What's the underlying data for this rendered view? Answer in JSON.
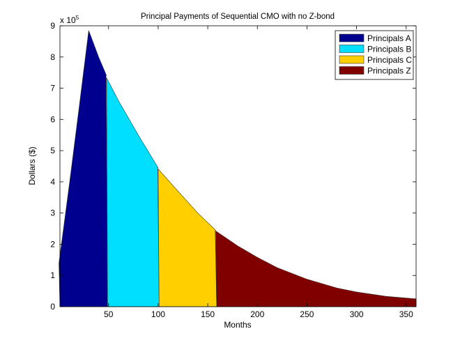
{
  "chart_data": {
    "type": "area",
    "title": "Principal Payments of Sequential CMO with no Z-bond",
    "xlabel": "Months",
    "ylabel": "Dollars ($)",
    "y_exponent_label": "x 10",
    "y_exponent": "5",
    "xlim": [
      1,
      360
    ],
    "ylim": [
      0,
      900000
    ],
    "xticks": [
      50,
      100,
      150,
      200,
      250,
      300,
      350
    ],
    "yticks": [
      0,
      1,
      2,
      3,
      4,
      5,
      6,
      7,
      8,
      9
    ],
    "grid": false,
    "legend_position": "top-right",
    "stacked": false,
    "total_curve": {
      "x": [
        1,
        10,
        20,
        30,
        40,
        48,
        60,
        80,
        100,
        120,
        140,
        158,
        180,
        200,
        220,
        250,
        280,
        300,
        330,
        360
      ],
      "y": [
        140000,
        380000,
        630000,
        885000,
        800000,
        740000,
        660000,
        550000,
        445000,
        370000,
        300000,
        245000,
        195000,
        158000,
        125000,
        88000,
        60000,
        47000,
        33000,
        25000
      ]
    },
    "series": [
      {
        "name": "Principals A",
        "color": "#00008F",
        "x_range": [
          1,
          49
        ]
      },
      {
        "name": "Principals B",
        "color": "#00DFFF",
        "x_range": [
          49,
          101
        ]
      },
      {
        "name": "Principals C",
        "color": "#FFCF00",
        "x_range": [
          101,
          159
        ]
      },
      {
        "name": "Principals Z",
        "color": "#800000",
        "x_range": [
          159,
          360
        ]
      }
    ]
  },
  "legend": {
    "items": [
      {
        "label": "Principals A",
        "color": "#00008F"
      },
      {
        "label": "Principals B",
        "color": "#00DFFF"
      },
      {
        "label": "Principals C",
        "color": "#FFCF00"
      },
      {
        "label": "Principals Z",
        "color": "#800000"
      }
    ]
  }
}
